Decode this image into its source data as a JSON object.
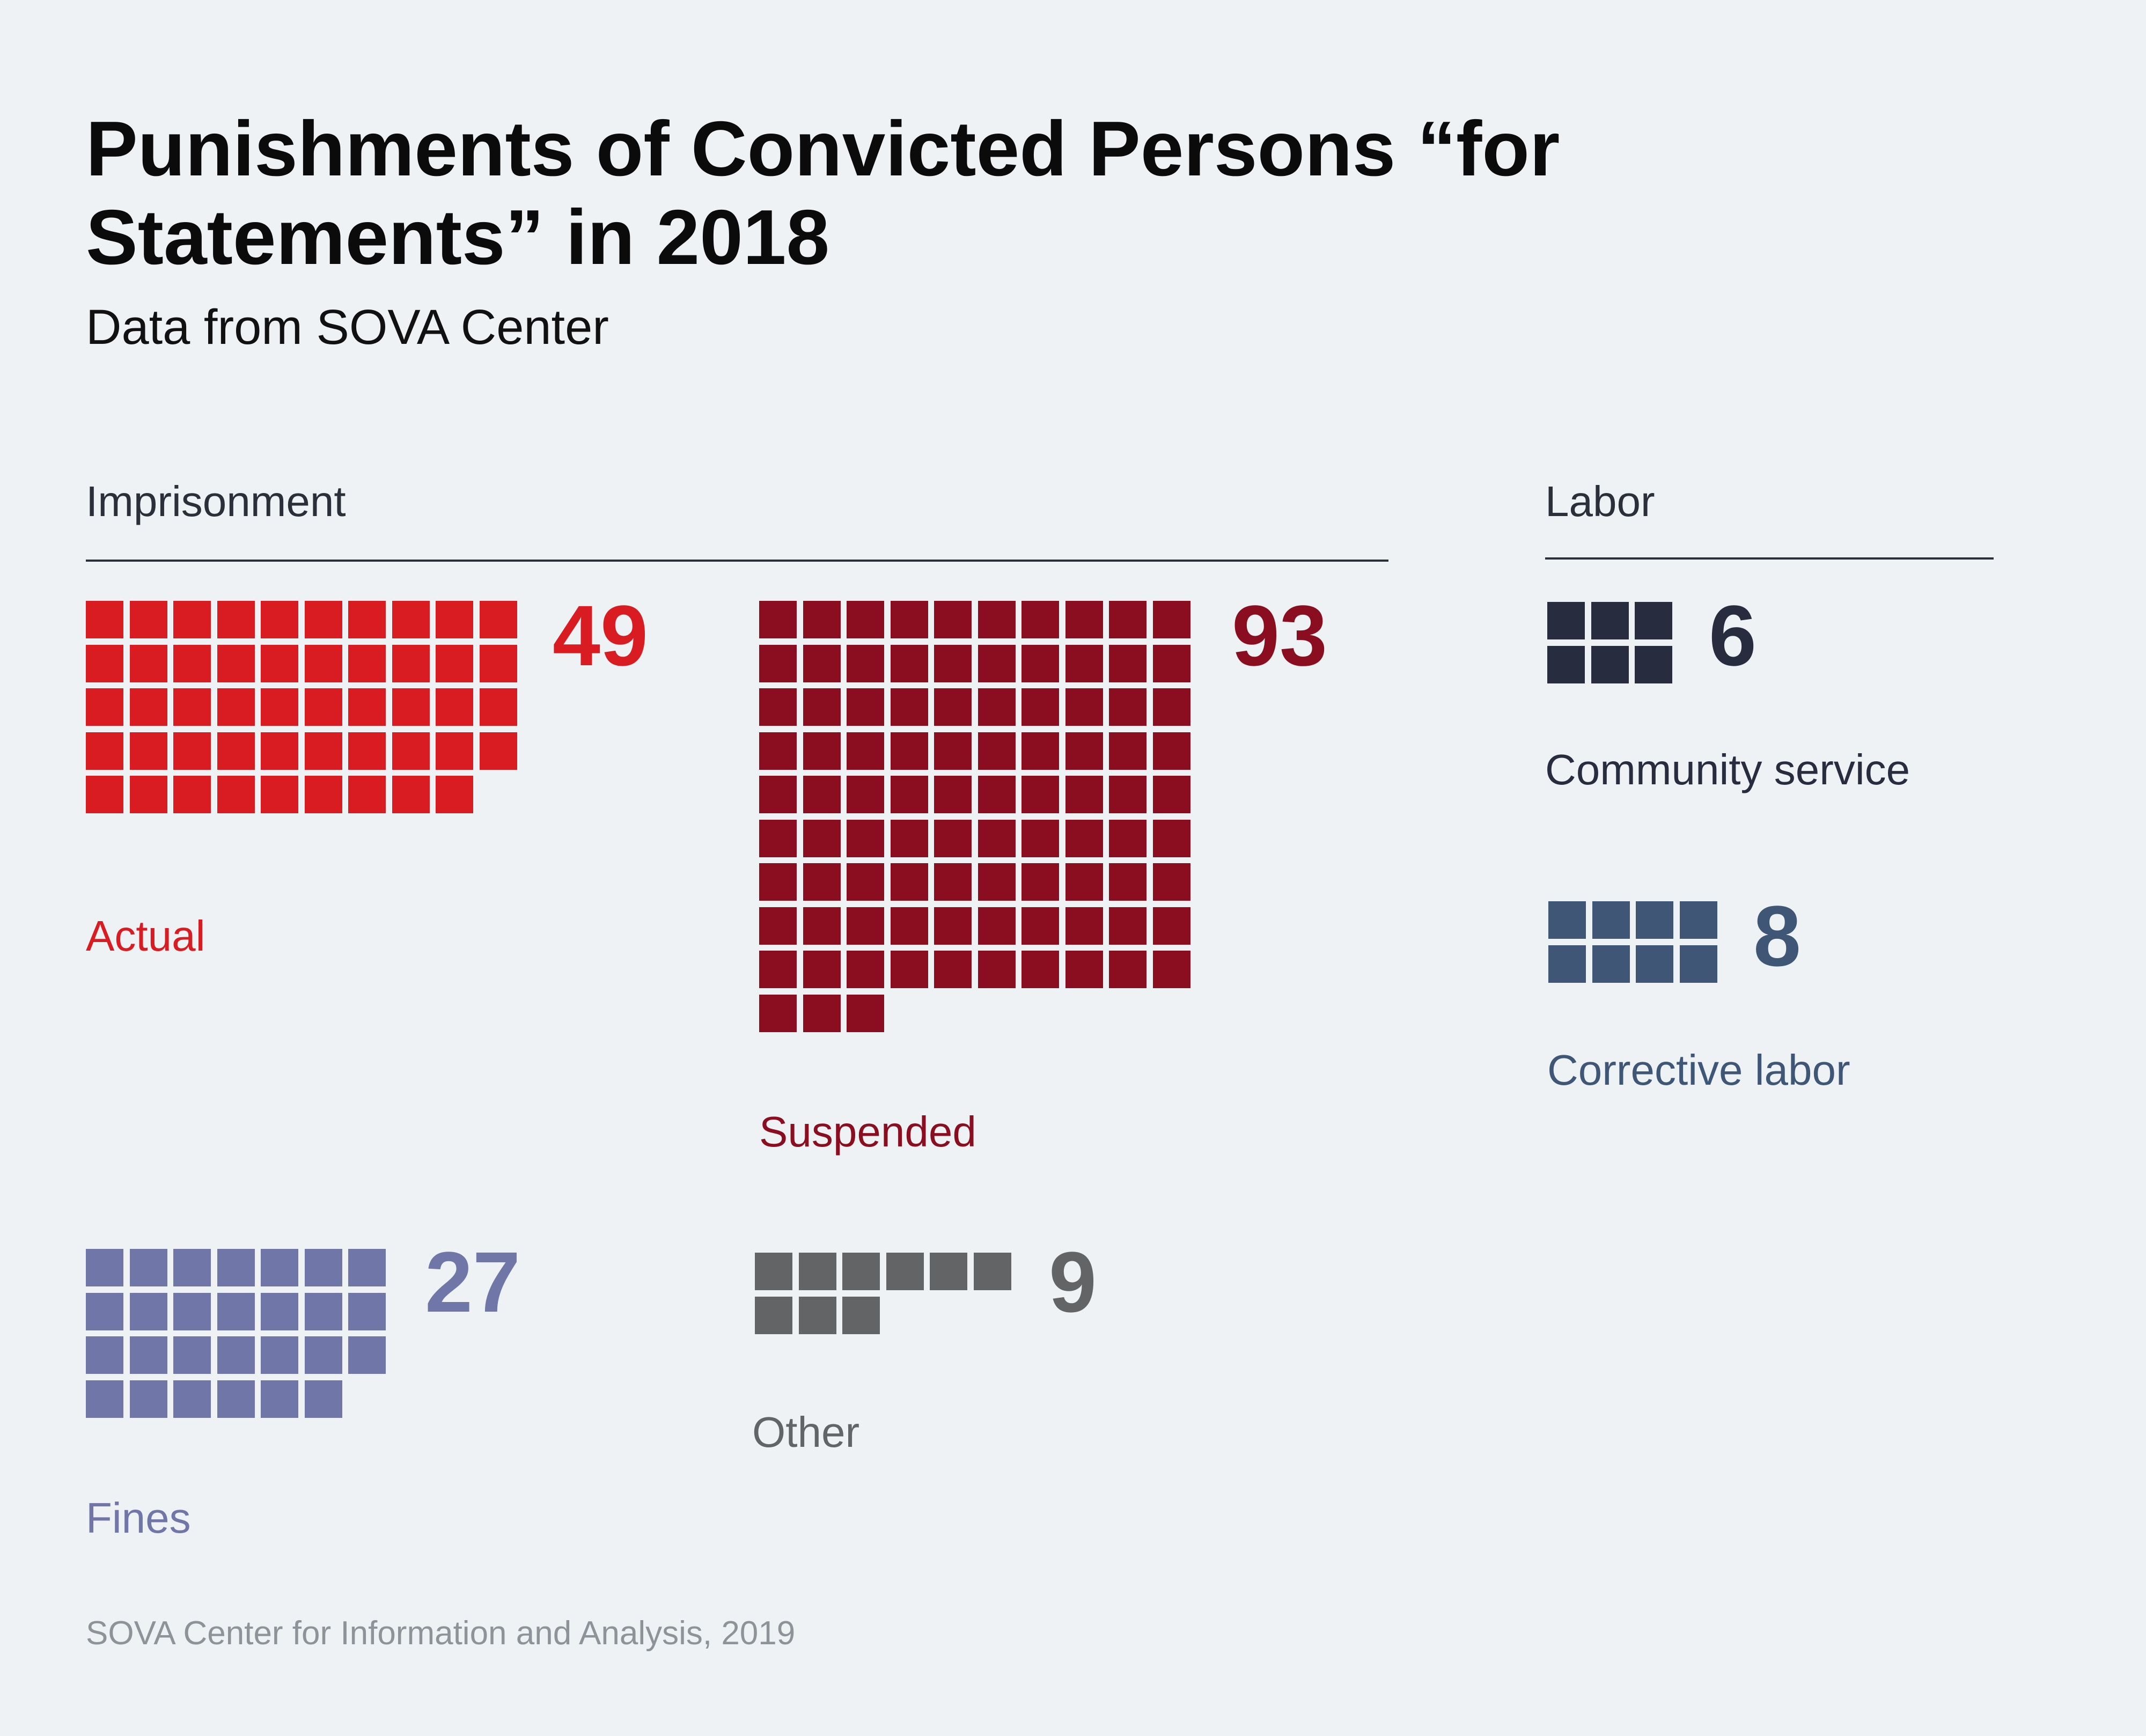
{
  "chart_data": {
    "type": "waffle",
    "title": "Punishments of Convicted Persons “for Statements” in 2018",
    "subtitle": "Data from SOVA Center",
    "source": "SOVA Center for Information and Analysis, 2019",
    "groups": [
      {
        "label": "Imprisonment",
        "categories": [
          {
            "key": "actual",
            "label": "Actual",
            "value": 49,
            "color": "#d81c22",
            "columns": 10
          },
          {
            "key": "suspended",
            "label": "Suspended",
            "value": 93,
            "color": "#8a0d20",
            "columns": 10
          }
        ]
      },
      {
        "label": "Labor",
        "categories": [
          {
            "key": "community",
            "label": "Community service",
            "value": 6,
            "color": "#272c3f",
            "columns": 3
          },
          {
            "key": "corrective",
            "label": "Corrective labor",
            "value": 8,
            "color": "#3f5676",
            "columns": 4
          }
        ]
      },
      {
        "label": "",
        "categories": [
          {
            "key": "fines",
            "label": "Fines",
            "value": 27,
            "color": "#7076a8",
            "columns": 7
          },
          {
            "key": "other",
            "label": "Other",
            "value": 9,
            "color": "#626465",
            "columns": 6
          }
        ]
      }
    ]
  }
}
